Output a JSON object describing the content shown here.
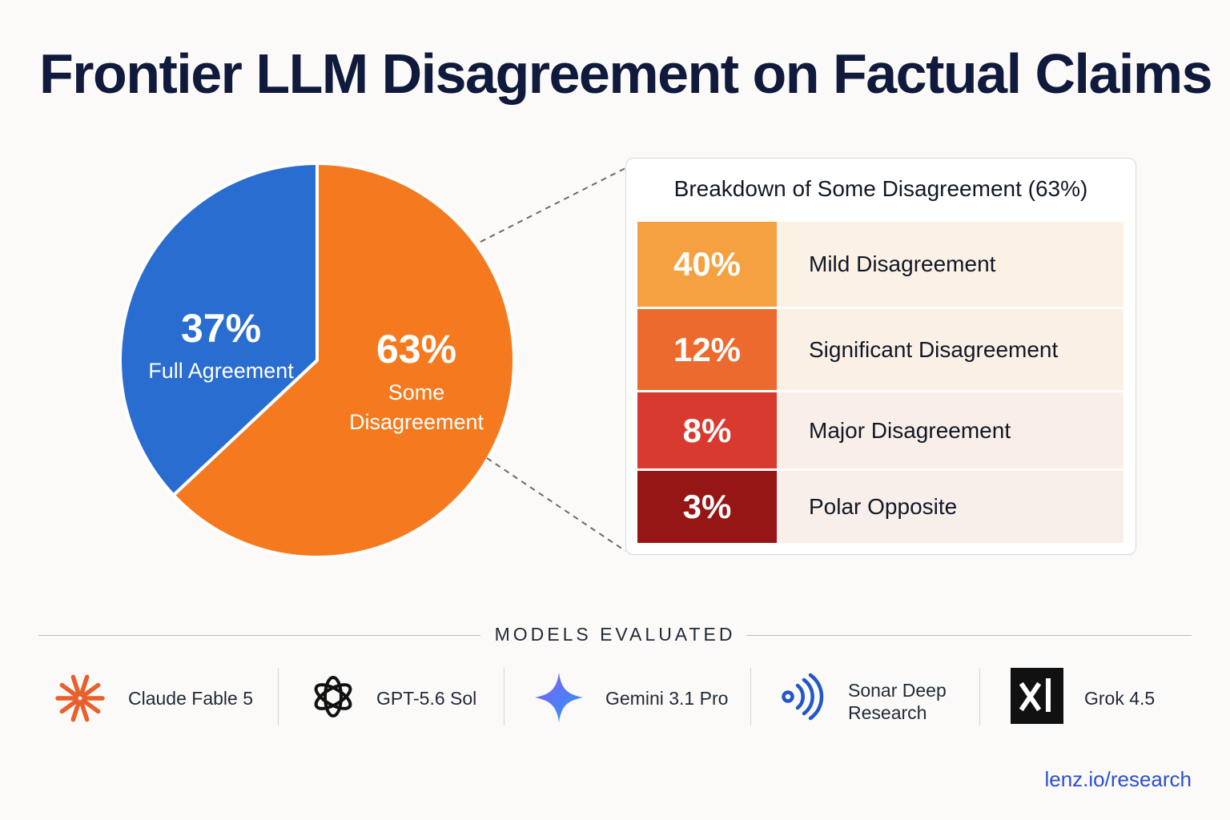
{
  "title": "Frontier LLM Disagreement on Factual Claims",
  "chart_data": [
    {
      "type": "pie",
      "slices": [
        {
          "name": "Full Agreement",
          "value": 37,
          "value_label": "37%",
          "color": "#2a6dd0"
        },
        {
          "name": "Some Disagreement",
          "value": 63,
          "value_label": "63%",
          "color": "#f57a1f"
        }
      ]
    },
    {
      "type": "table",
      "title": "Breakdown of Some Disagreement (63%)",
      "rows": [
        {
          "value": 40,
          "value_label": "40%",
          "label": "Mild Disagreement",
          "color": "#f5a142",
          "row_bg": "#fbf1e4"
        },
        {
          "value": 12,
          "value_label": "12%",
          "label": "Significant Disagreement",
          "color": "#ed6a2e",
          "row_bg": "#fbf0e6"
        },
        {
          "value": 8,
          "value_label": "8%",
          "label": "Major Disagreement",
          "color": "#d93a2f",
          "row_bg": "#f9efe8"
        },
        {
          "value": 3,
          "value_label": "3%",
          "label": "Polar Opposite",
          "color": "#961515",
          "row_bg": "#f8efeb"
        }
      ]
    }
  ],
  "models": {
    "heading": "MODELS EVALUATED",
    "items": [
      {
        "name": "Claude Fable 5",
        "icon": "asterisk-burst-icon",
        "color": "#e8602c"
      },
      {
        "name": "GPT-5.6 Sol",
        "icon": "knot-logo-icon",
        "color": "#111111"
      },
      {
        "name": "Gemini 3.1 Pro",
        "icon": "sparkle-star-icon",
        "color": "#5b6ef5"
      },
      {
        "name": "Sonar Deep Research",
        "name_lines": [
          "Sonar Deep",
          "Research"
        ],
        "icon": "signal-waves-icon",
        "color": "#2456c8"
      },
      {
        "name": "Grok 4.5",
        "icon": "xi-logo-icon",
        "color": "#111111"
      }
    ]
  },
  "footer": "lenz.io/research"
}
